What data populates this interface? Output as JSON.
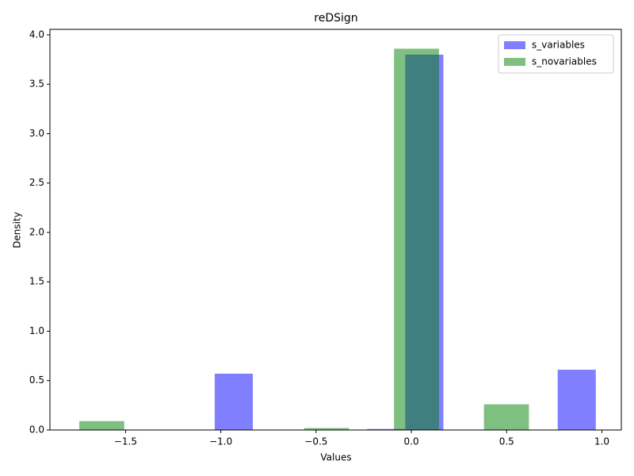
{
  "chart_data": {
    "type": "histogram",
    "title": "reDSign",
    "x_label": "Values",
    "y_label": "Density",
    "series": [
      {
        "name": "s_variables",
        "color": "rgba(0,0,255,0.5)",
        "bins": [
          -1.032,
          -0.832,
          -0.632,
          -0.432,
          -0.232,
          -0.032,
          0.168,
          0.368,
          0.568,
          0.768,
          0.968
        ],
        "values": [
          0.57,
          0,
          0,
          0,
          0.01,
          3.8,
          0,
          0,
          0,
          0.61
        ]
      },
      {
        "name": "s_novariables",
        "color": "rgba(0,128,0,0.5)",
        "bins": [
          -1.743,
          -1.507,
          -1.271,
          -1.035,
          -0.799,
          -0.563,
          -0.327,
          -0.091,
          0.145,
          0.381,
          0.617
        ],
        "values": [
          0.09,
          0,
          0,
          0,
          0,
          0.02,
          0,
          3.86,
          0,
          0.26
        ]
      }
    ],
    "xlim": [
      -1.897,
      1.102
    ],
    "xticks": [
      {
        "value": -1.5,
        "label": "−1.5"
      },
      {
        "value": -1.0,
        "label": "−1.0"
      },
      {
        "value": -0.5,
        "label": "−0.5"
      },
      {
        "value": 0,
        "label": "0.0"
      },
      {
        "value": 0.5,
        "label": "0.5"
      },
      {
        "value": 1.0,
        "label": "1.0"
      }
    ],
    "ylim": [
      0,
      4.056
    ],
    "yticks": [
      {
        "value": 0,
        "label": "0.0"
      },
      0.5,
      {
        "value": 1,
        "label": "1.0"
      },
      1.5,
      {
        "value": 2,
        "label": "2.0"
      },
      2.5,
      {
        "value": 3,
        "label": "3.0"
      },
      3.5,
      {
        "value": 4,
        "label": "4.0"
      }
    ],
    "legend": "upper right"
  }
}
